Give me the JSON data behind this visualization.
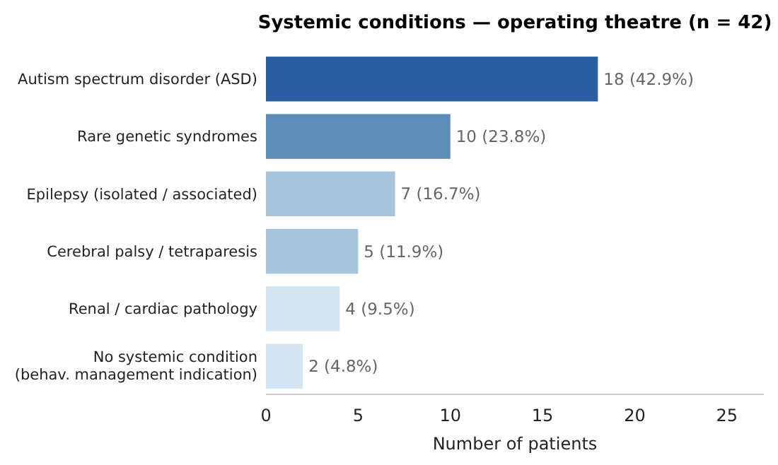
{
  "chart_data": {
    "type": "bar",
    "orientation": "horizontal",
    "title": "Systemic conditions — operating theatre (n = 42)",
    "xlabel": "Number of patients",
    "categories": [
      "Autism spectrum disorder (ASD)",
      "Rare genetic syndromes",
      "Epilepsy (isolated / associated)",
      "Cerebral palsy / tetraparesis",
      "Renal / cardiac pathology",
      "No systemic condition\n(behav. management indication)"
    ],
    "values": [
      18,
      10,
      7,
      5,
      4,
      2
    ],
    "colors": [
      "#2a5ea3",
      "#5b8db8",
      "#a8c4dc",
      "#a8c4dc",
      "#d3e4f1",
      "#d3e4f1"
    ],
    "value_labels": [
      "18 (42.9%)",
      "10 (23.8%)",
      "7 (16.7%)",
      "5 (11.9%)",
      "4 (9.5%)",
      "2 (4.8%)"
    ],
    "xlim": [
      0,
      27
    ],
    "xticks": [
      0,
      5,
      10,
      15,
      20,
      25
    ],
    "grid": false
  }
}
